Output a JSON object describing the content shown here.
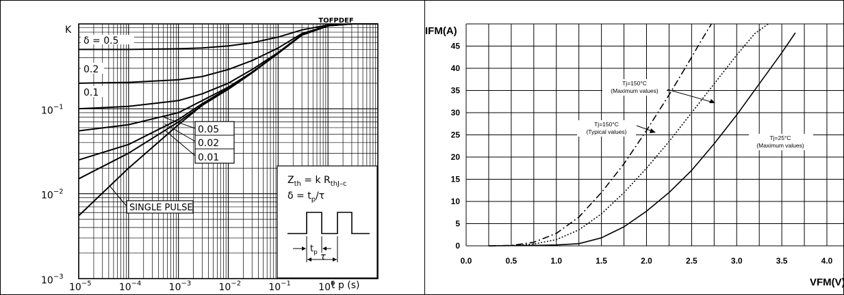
{
  "left_panel": {
    "tag": "TOFPDEF",
    "y_axis_label": "K",
    "x_axis_label": "t p (s)",
    "formula_zth": "Z",
    "formula_zth_sub": "th",
    "formula_mid": " = k R",
    "formula_rth_sub": "thJ–c",
    "formula_delta": "δ = t",
    "formula_delta_sub": "p",
    "formula_delta_tail": "/τ",
    "pulse_tp": "t",
    "pulse_tp_sub": "p",
    "pulse_tau": "τ"
  },
  "right_panel": {
    "y_axis_label": "IFM(A)",
    "x_axis_label": "VFM(V)"
  },
  "chart_data": [
    {
      "type": "line",
      "x_scale": "log",
      "y_scale": "log",
      "xlim": [
        1e-05,
        10
      ],
      "ylim": [
        0.001,
        1
      ],
      "grid": true,
      "xlabel": "t p (s)",
      "ylabel": "K",
      "x_ticks": [
        {
          "base": "10",
          "exp": "−5"
        },
        {
          "base": "10",
          "exp": "−4"
        },
        {
          "base": "10",
          "exp": "−3"
        },
        {
          "base": "10",
          "exp": "−2"
        },
        {
          "base": "10",
          "exp": "−1"
        },
        {
          "base": "10",
          "exp": "0"
        }
      ],
      "y_ticks": [
        {
          "value": 0.001,
          "base": "10",
          "exp": "−3"
        },
        {
          "value": 0.01,
          "base": "10",
          "exp": "−2"
        },
        {
          "value": 0.1,
          "base": "10",
          "exp": "−1"
        }
      ],
      "series": [
        {
          "name": "δ = 0.5",
          "x": [
            1e-05,
            0.0001,
            0.001,
            0.003,
            0.01,
            0.03,
            0.1,
            0.3,
            1,
            3,
            10
          ],
          "y": [
            0.5,
            0.5,
            0.51,
            0.52,
            0.55,
            0.6,
            0.7,
            0.85,
            0.97,
            1.0,
            1.0
          ]
        },
        {
          "name": "0.2",
          "x": [
            1e-05,
            0.0001,
            0.001,
            0.003,
            0.01,
            0.03,
            0.1,
            0.3,
            1,
            3,
            10
          ],
          "y": [
            0.2,
            0.205,
            0.22,
            0.24,
            0.29,
            0.37,
            0.52,
            0.77,
            0.95,
            1.0,
            1.0
          ]
        },
        {
          "name": "0.1",
          "x": [
            1e-05,
            0.0001,
            0.001,
            0.003,
            0.01,
            0.03,
            0.1,
            0.3,
            1,
            3,
            10
          ],
          "y": [
            0.1,
            0.107,
            0.125,
            0.15,
            0.2,
            0.29,
            0.46,
            0.75,
            0.95,
            1.0,
            1.0
          ]
        },
        {
          "name": "0.05",
          "x": [
            1e-05,
            0.0001,
            0.001,
            0.003,
            0.01,
            0.03,
            0.1,
            0.3,
            1,
            3,
            10
          ],
          "y": [
            0.055,
            0.065,
            0.09,
            0.125,
            0.18,
            0.27,
            0.45,
            0.74,
            0.95,
            1.0,
            1.0
          ]
        },
        {
          "name": "0.02",
          "x": [
            1e-05,
            0.0001,
            0.001,
            0.003,
            0.01,
            0.03,
            0.1,
            0.3,
            1,
            3,
            10
          ],
          "y": [
            0.025,
            0.038,
            0.075,
            0.115,
            0.175,
            0.27,
            0.45,
            0.74,
            0.95,
            1.0,
            1.0
          ]
        },
        {
          "name": "0.01",
          "x": [
            1e-05,
            0.0001,
            0.001,
            0.003,
            0.01,
            0.03,
            0.1,
            0.3,
            1,
            3,
            10
          ],
          "y": [
            0.015,
            0.03,
            0.07,
            0.11,
            0.17,
            0.265,
            0.45,
            0.74,
            0.95,
            1.0,
            1.0
          ]
        },
        {
          "name": "SINGLE PULSE",
          "x": [
            1e-05,
            0.0001,
            0.001,
            0.003,
            0.01,
            0.03,
            0.1,
            0.3,
            1,
            3,
            10
          ],
          "y": [
            0.0055,
            0.02,
            0.065,
            0.11,
            0.17,
            0.265,
            0.45,
            0.74,
            0.95,
            1.0,
            1.0
          ]
        }
      ]
    },
    {
      "type": "line",
      "xlim": [
        0,
        4.0
      ],
      "ylim": [
        0,
        50
      ],
      "grid": true,
      "xlabel": "VFM(V)",
      "ylabel": "IFM(A)",
      "x_ticks": [
        "0.0",
        "0.5",
        "1.0",
        "1.5",
        "2.0",
        "2.5",
        "3.0",
        "3.5",
        "4.0"
      ],
      "y_ticks": [
        "0",
        "5",
        "10",
        "15",
        "20",
        "25",
        "30",
        "35",
        "40",
        "45"
      ],
      "series": [
        {
          "name": "Tj=150°C (Maximum values)",
          "style": "dashdot",
          "x": [
            0.25,
            0.5,
            0.75,
            1.0,
            1.25,
            1.5,
            1.75,
            2.0,
            2.25,
            2.5,
            2.6,
            2.72
          ],
          "y": [
            0.0,
            0.1,
            0.8,
            2.8,
            6.5,
            12.0,
            18.5,
            26.0,
            34.0,
            42.5,
            46.0,
            50.0
          ]
        },
        {
          "name": "Tj=150°C (Typical values)",
          "style": "dotted",
          "x": [
            0.25,
            0.5,
            0.75,
            1.0,
            1.25,
            1.5,
            1.75,
            2.0,
            2.25,
            2.5,
            2.75,
            3.0,
            3.2,
            3.35
          ],
          "y": [
            0.0,
            0.05,
            0.4,
            1.4,
            3.6,
            7.2,
            12.0,
            17.5,
            23.5,
            30.0,
            36.5,
            43.0,
            47.8,
            50.0
          ]
        },
        {
          "name": "Tj=25°C (Maximum values)",
          "style": "solid",
          "x": [
            0.25,
            0.75,
            1.0,
            1.25,
            1.5,
            1.75,
            2.0,
            2.25,
            2.5,
            2.75,
            3.0,
            3.25,
            3.5,
            3.65
          ],
          "y": [
            0.0,
            0.1,
            0.2,
            0.5,
            1.8,
            4.3,
            7.8,
            12.0,
            17.0,
            23.0,
            29.5,
            36.5,
            43.5,
            48.0
          ]
        }
      ],
      "annotations": [
        {
          "line1": "Tj=150°C",
          "line2": "(Maximum values)"
        },
        {
          "line1": "Tj=150°C",
          "line2": "(Typical values)"
        },
        {
          "line1": "Tj=25°C",
          "line2": "(Maximum values)"
        }
      ]
    }
  ]
}
